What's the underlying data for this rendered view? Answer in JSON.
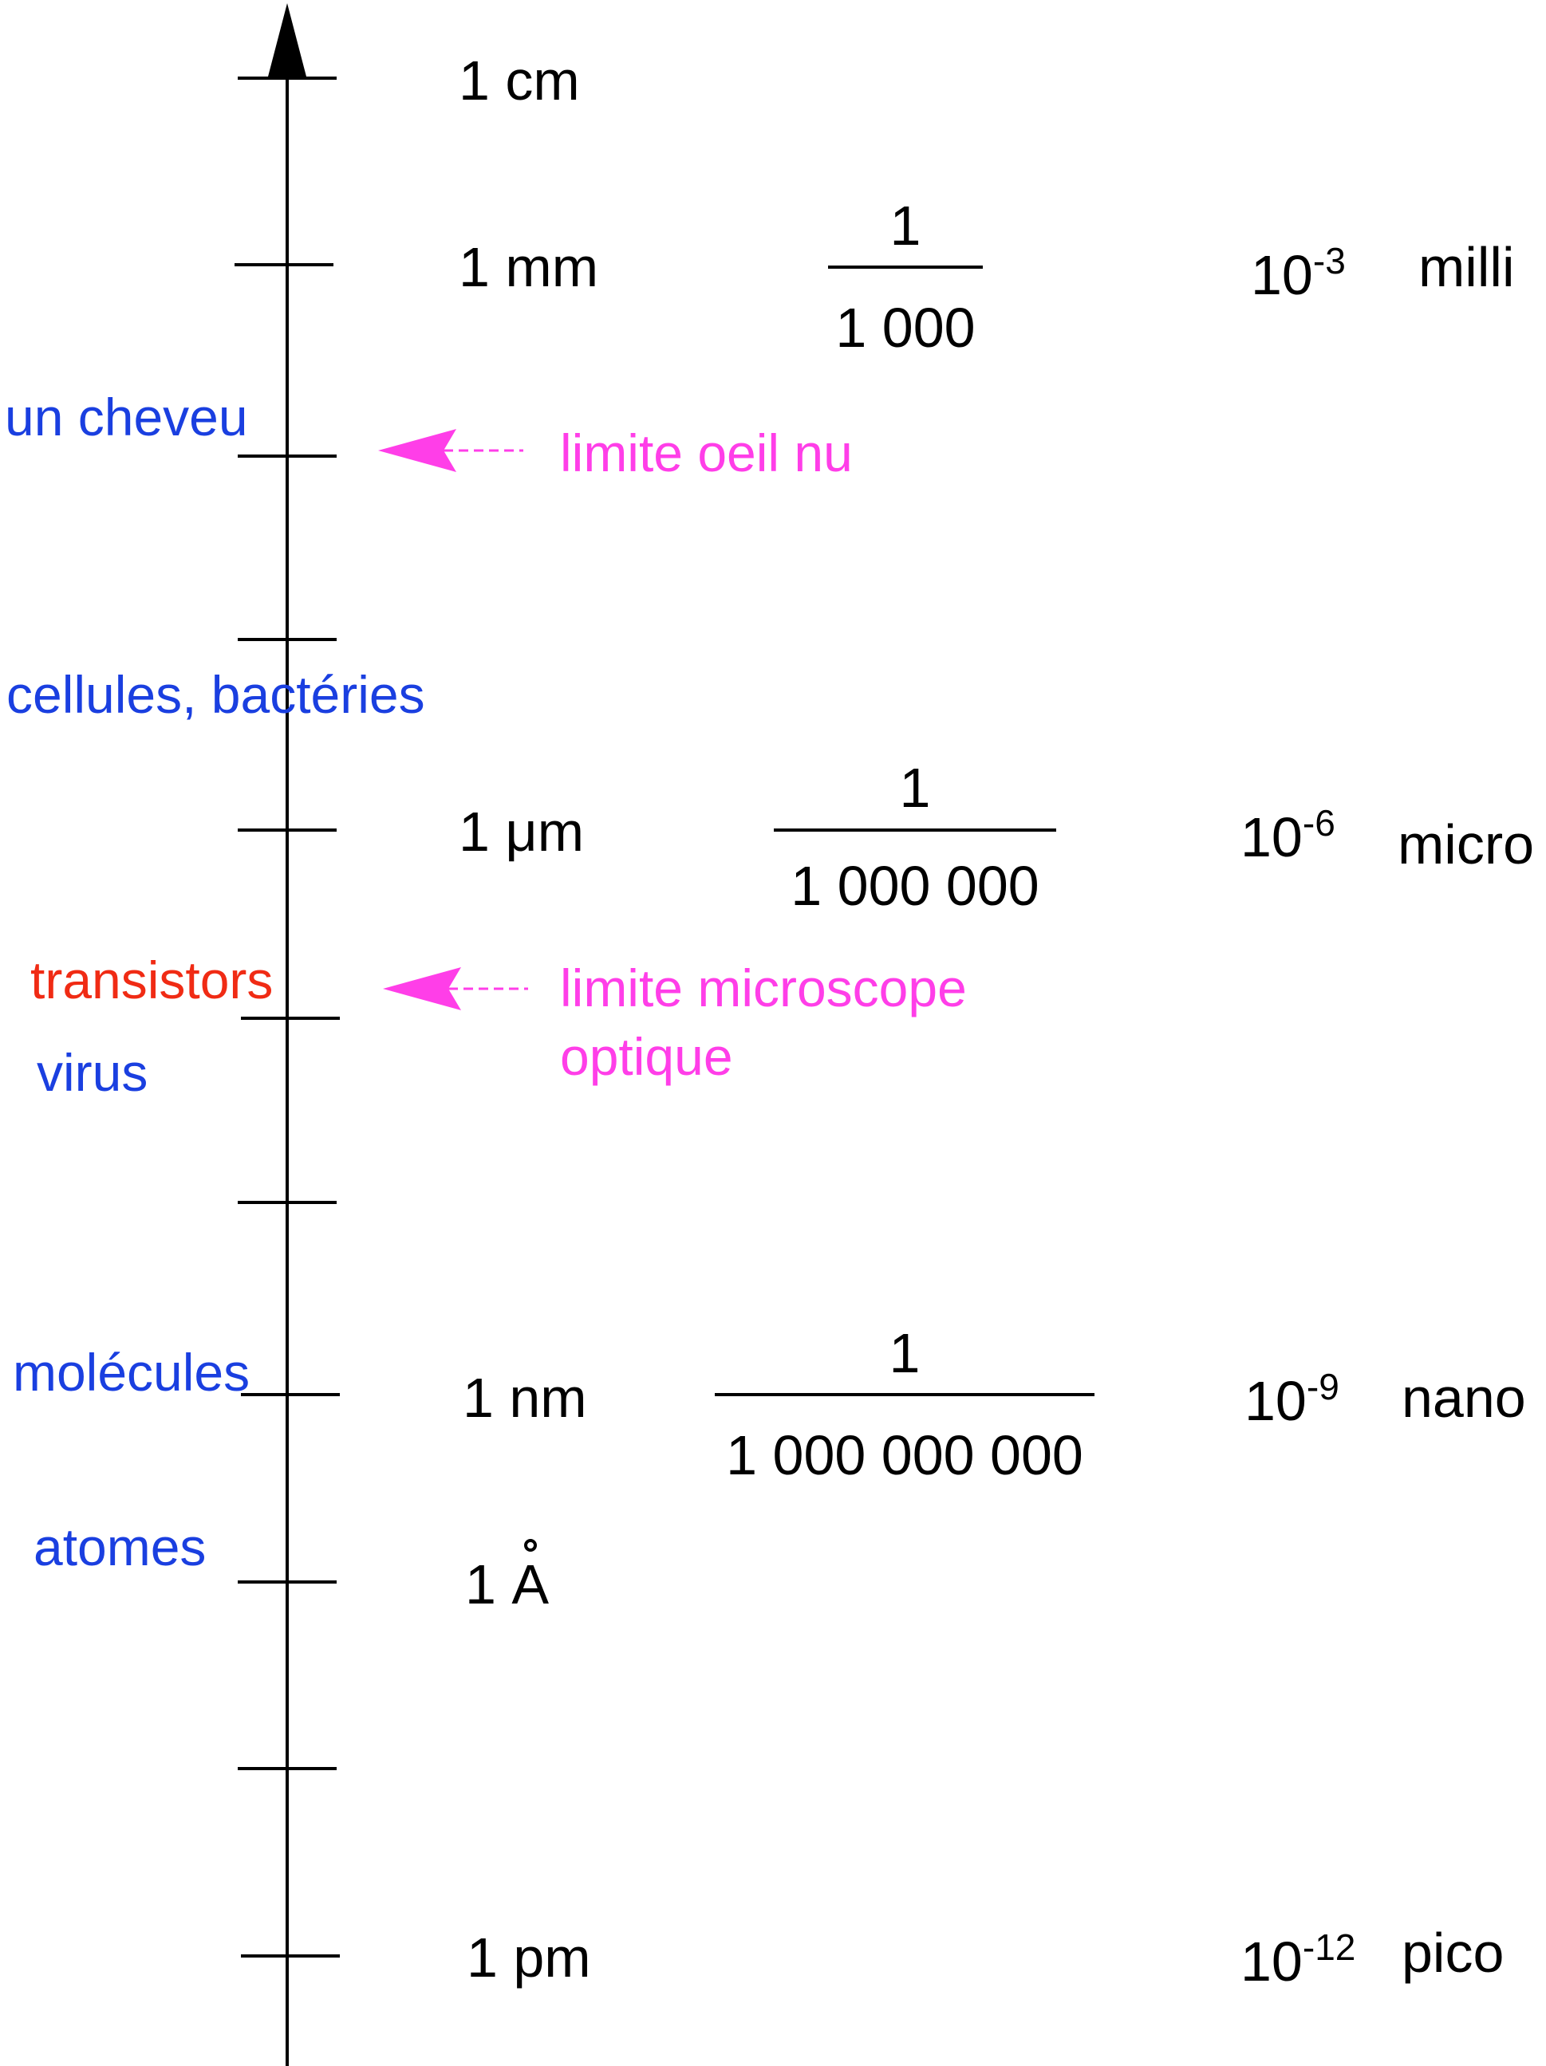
{
  "scale": {
    "units": [
      {
        "id": "cm",
        "label": "1 cm"
      },
      {
        "id": "mm",
        "label": "1 mm"
      },
      {
        "id": "um",
        "prefix_num": "1 ",
        "mu": "μ",
        "suffix": "m"
      },
      {
        "id": "nm",
        "label": "1 nm"
      },
      {
        "id": "angstrom",
        "prefix_num": "1 ",
        "letter": "A"
      },
      {
        "id": "pm",
        "label": "1 pm"
      }
    ],
    "fractions": [
      {
        "id": "mm",
        "numerator": "1",
        "denominator": "1 000"
      },
      {
        "id": "um",
        "numerator": "1",
        "denominator": "1 000 000"
      },
      {
        "id": "nm",
        "numerator": "1",
        "denominator": "1 000 000 000"
      }
    ],
    "powers": [
      {
        "id": "milli",
        "base": "10",
        "exponent": "-3",
        "prefix": "milli"
      },
      {
        "id": "micro",
        "base": "10",
        "exponent": "-6",
        "prefix": "micro"
      },
      {
        "id": "nano",
        "base": "10",
        "exponent": "-9",
        "prefix": "nano"
      },
      {
        "id": "pico",
        "base": "10",
        "exponent": "-12",
        "prefix": "pico"
      }
    ]
  },
  "objects": {
    "hair": "un cheveu",
    "cells": "cellules, bactéries",
    "transistors": "transistors",
    "virus": "virus",
    "molecules": "molécules",
    "atoms": "atomes"
  },
  "limits": {
    "naked_eye": "limite oeil nu",
    "microscope_line1": "limite microscope",
    "microscope_line2": "optique"
  },
  "colors": {
    "axis": "#000000",
    "object_label": "#1a3fe0",
    "transistor_label": "#f02b14",
    "limit": "#ff3ee8"
  }
}
